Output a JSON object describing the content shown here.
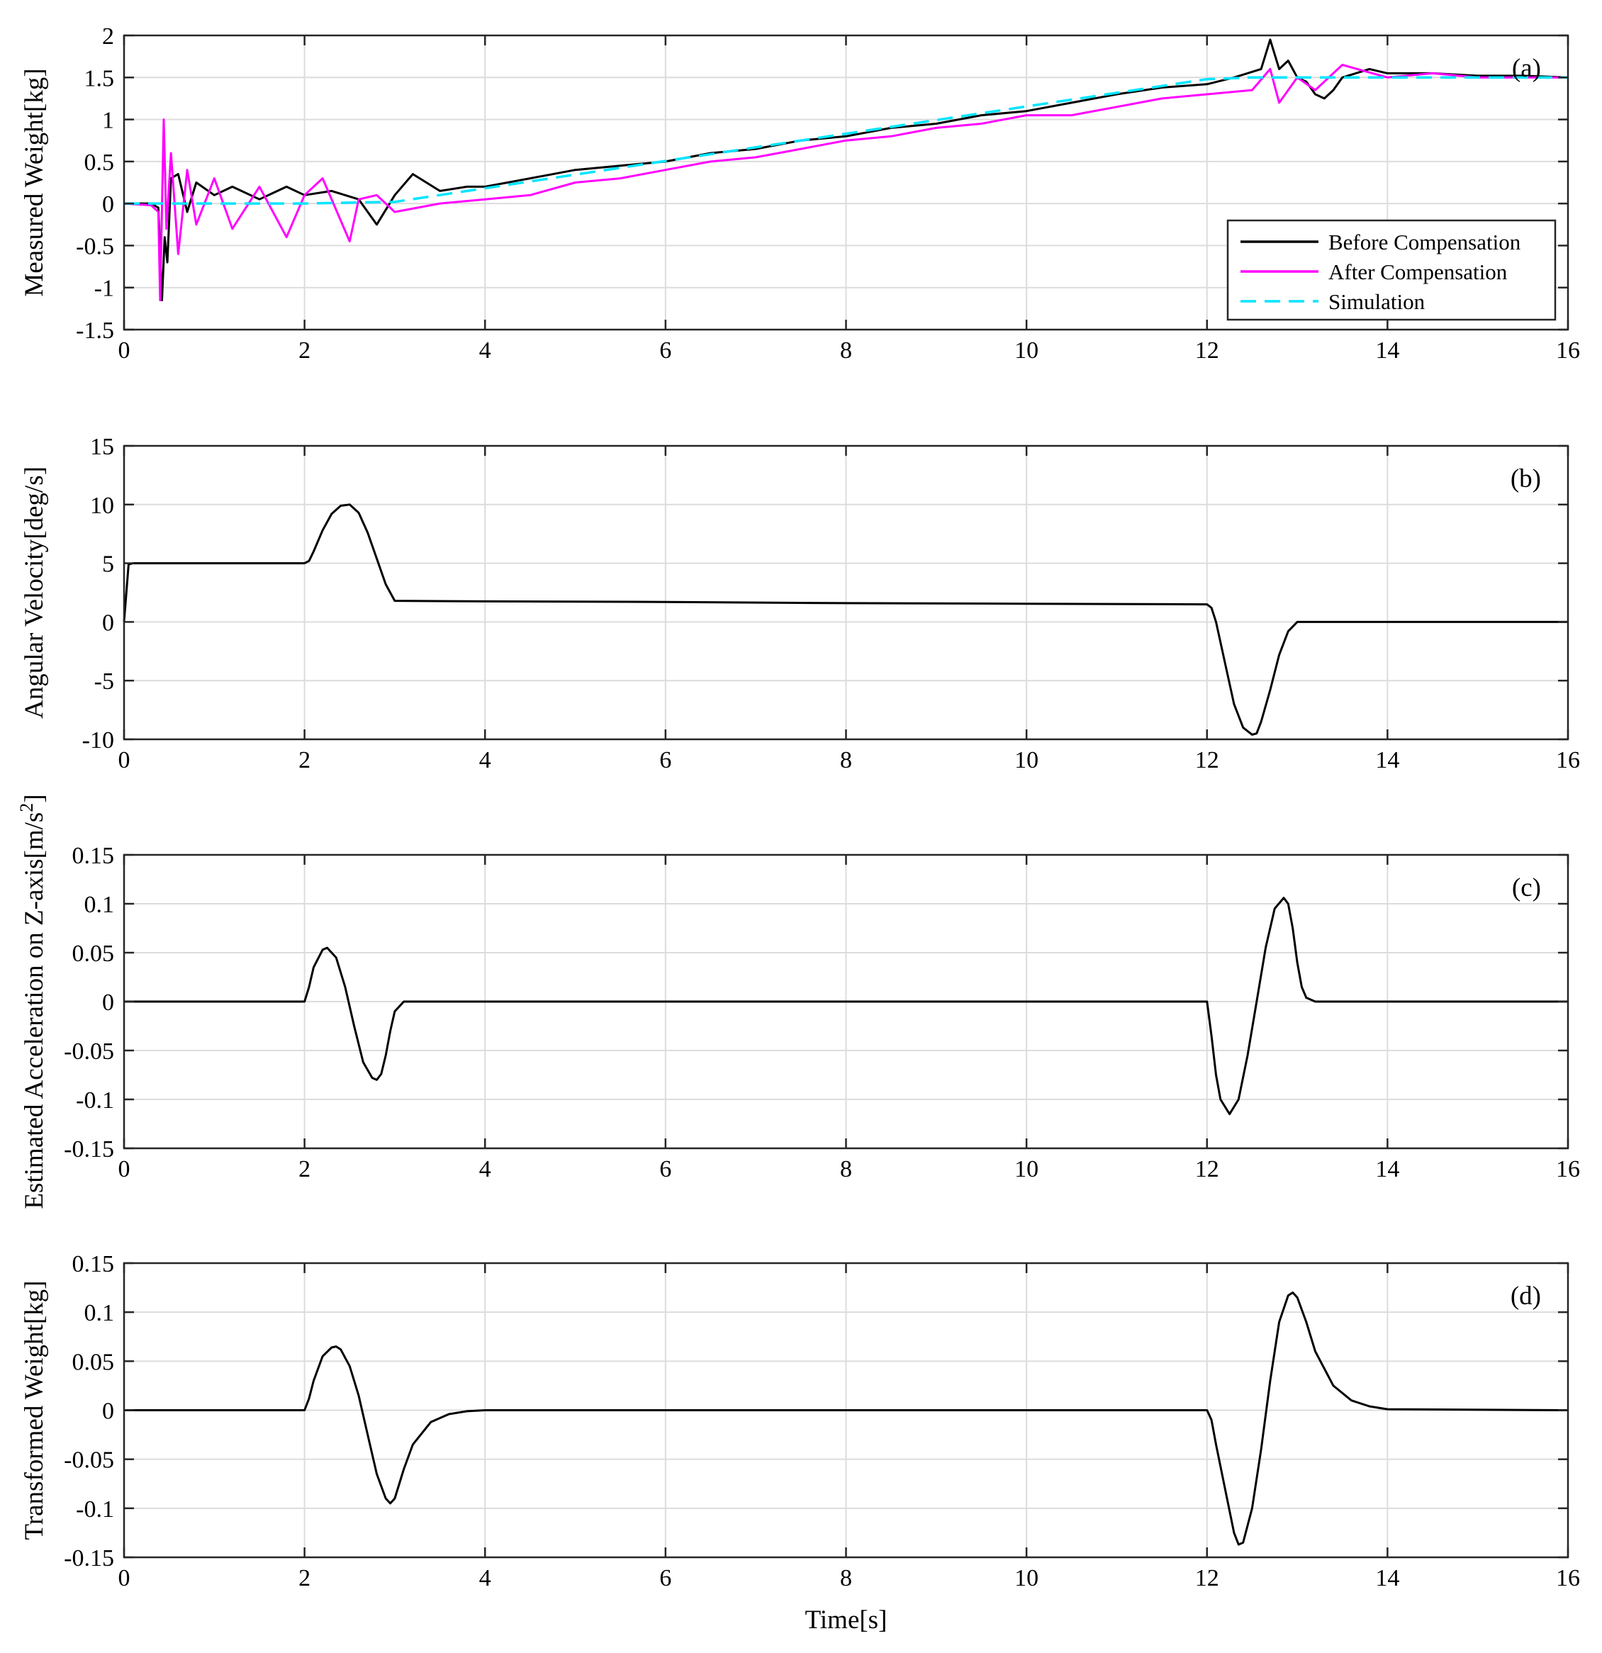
{
  "chart_data": [
    {
      "type": "line",
      "panel_label": "(a)",
      "ylabel": "Measured Weight[kg]",
      "xlabel": "",
      "xlim": [
        0,
        16
      ],
      "ylim": [
        -1.5,
        2
      ],
      "x_ticks": [
        0,
        2,
        4,
        6,
        8,
        10,
        12,
        14,
        16
      ],
      "y_ticks": [
        -1.5,
        -1,
        -0.5,
        0,
        0.5,
        1,
        1.5,
        2
      ],
      "grid": true,
      "legend_position": "bottom-right",
      "series": [
        {
          "name": "Before Compensation",
          "color": "#000000",
          "style": "solid",
          "x": [
            0,
            0.3,
            0.38,
            0.42,
            0.45,
            0.48,
            0.52,
            0.6,
            0.7,
            0.8,
            1.0,
            1.2,
            1.5,
            1.8,
            2.0,
            2.3,
            2.6,
            2.8,
            3.0,
            3.2,
            3.5,
            3.8,
            4.0,
            4.5,
            5.0,
            5.5,
            6.0,
            6.5,
            7.0,
            7.5,
            8.0,
            8.5,
            9.0,
            9.5,
            10.0,
            10.5,
            11.0,
            11.5,
            12.0,
            12.3,
            12.6,
            12.7,
            12.8,
            12.9,
            13.0,
            13.1,
            13.2,
            13.3,
            13.4,
            13.5,
            13.8,
            14.0,
            14.5,
            15.0,
            15.5,
            16.0
          ],
          "y": [
            0,
            0,
            -0.05,
            -1.15,
            -0.4,
            -0.7,
            0.3,
            0.35,
            -0.1,
            0.25,
            0.1,
            0.2,
            0.05,
            0.2,
            0.1,
            0.15,
            0.05,
            -0.25,
            0.1,
            0.35,
            0.15,
            0.2,
            0.2,
            0.3,
            0.4,
            0.45,
            0.5,
            0.6,
            0.65,
            0.75,
            0.8,
            0.9,
            0.95,
            1.05,
            1.1,
            1.2,
            1.3,
            1.38,
            1.42,
            1.5,
            1.6,
            1.95,
            1.6,
            1.7,
            1.5,
            1.45,
            1.3,
            1.25,
            1.35,
            1.5,
            1.6,
            1.55,
            1.55,
            1.52,
            1.52,
            1.5
          ]
        },
        {
          "name": "After Compensation",
          "color": "#ff00ff",
          "style": "solid",
          "x": [
            0,
            0.3,
            0.38,
            0.4,
            0.44,
            0.47,
            0.52,
            0.6,
            0.7,
            0.8,
            1.0,
            1.2,
            1.5,
            1.8,
            2.0,
            2.2,
            2.5,
            2.6,
            2.8,
            3.0,
            3.5,
            4.0,
            4.5,
            5.0,
            5.5,
            6.0,
            6.5,
            7.0,
            7.5,
            8.0,
            8.5,
            9.0,
            9.5,
            10.0,
            10.5,
            11.0,
            11.5,
            12.0,
            12.5,
            12.7,
            12.8,
            13.0,
            13.2,
            13.5,
            14.0,
            14.5,
            15.0,
            15.5,
            16.0
          ],
          "y": [
            0,
            -0.02,
            -0.1,
            -1.15,
            1.0,
            -0.3,
            0.6,
            -0.6,
            0.4,
            -0.25,
            0.3,
            -0.3,
            0.2,
            -0.4,
            0.1,
            0.3,
            -0.45,
            0.05,
            0.1,
            -0.1,
            0.0,
            0.05,
            0.1,
            0.25,
            0.3,
            0.4,
            0.5,
            0.55,
            0.65,
            0.75,
            0.8,
            0.9,
            0.95,
            1.05,
            1.05,
            1.15,
            1.25,
            1.3,
            1.35,
            1.6,
            1.2,
            1.5,
            1.35,
            1.65,
            1.5,
            1.55,
            1.5,
            1.5,
            1.5
          ]
        },
        {
          "name": "Simulation",
          "color": "#00e5ff",
          "style": "dashed",
          "x": [
            0,
            2,
            3,
            12,
            12.5,
            13,
            16
          ],
          "y": [
            0,
            0,
            0.02,
            1.48,
            1.5,
            1.5,
            1.5
          ]
        }
      ]
    },
    {
      "type": "line",
      "panel_label": "(b)",
      "ylabel": "Angular Velocity[deg/s]",
      "xlabel": "",
      "xlim": [
        0,
        16
      ],
      "ylim": [
        -10,
        15
      ],
      "x_ticks": [
        0,
        2,
        4,
        6,
        8,
        10,
        12,
        14,
        16
      ],
      "y_ticks": [
        -10,
        -5,
        0,
        5,
        10,
        15
      ],
      "grid": true,
      "series": [
        {
          "color": "#000000",
          "style": "solid",
          "x": [
            0,
            0.05,
            0.1,
            1.0,
            2.0,
            2.05,
            2.1,
            2.2,
            2.3,
            2.4,
            2.5,
            2.6,
            2.7,
            2.8,
            2.9,
            3.0,
            4.0,
            6.0,
            8.0,
            10.0,
            12.0,
            12.05,
            12.1,
            12.2,
            12.3,
            12.4,
            12.5,
            12.55,
            12.6,
            12.7,
            12.8,
            12.9,
            13.0,
            14.0,
            16.0
          ],
          "y": [
            0,
            4.9,
            5,
            5,
            5,
            5.2,
            6,
            7.8,
            9.2,
            9.9,
            10,
            9.3,
            7.6,
            5.4,
            3.2,
            1.8,
            1.75,
            1.7,
            1.6,
            1.55,
            1.5,
            1.2,
            0,
            -3.5,
            -7.0,
            -9.0,
            -9.6,
            -9.5,
            -8.5,
            -5.8,
            -2.8,
            -0.8,
            0,
            0,
            0
          ]
        }
      ]
    },
    {
      "type": "line",
      "panel_label": "(c)",
      "ylabel": "Estimated Acceleration on Z-axis[m/s²]",
      "xlabel": "",
      "xlim": [
        0,
        16
      ],
      "ylim": [
        -0.15,
        0.15
      ],
      "x_ticks": [
        0,
        2,
        4,
        6,
        8,
        10,
        12,
        14,
        16
      ],
      "y_ticks": [
        -0.15,
        -0.1,
        -0.05,
        0,
        0.05,
        0.1,
        0.15
      ],
      "grid": true,
      "series": [
        {
          "color": "#000000",
          "style": "solid",
          "x": [
            0,
            2.0,
            2.05,
            2.1,
            2.2,
            2.25,
            2.35,
            2.45,
            2.55,
            2.65,
            2.75,
            2.8,
            2.85,
            2.9,
            2.95,
            3.0,
            3.1,
            4.0,
            12.0,
            12.05,
            12.1,
            12.15,
            12.25,
            12.35,
            12.45,
            12.55,
            12.65,
            12.75,
            12.85,
            12.9,
            12.95,
            13.0,
            13.05,
            13.1,
            13.2,
            14.0,
            16.0
          ],
          "y": [
            0,
            0,
            0.015,
            0.035,
            0.053,
            0.055,
            0.045,
            0.015,
            -0.025,
            -0.062,
            -0.078,
            -0.08,
            -0.074,
            -0.055,
            -0.03,
            -0.01,
            0,
            0,
            0,
            -0.035,
            -0.075,
            -0.1,
            -0.115,
            -0.1,
            -0.055,
            0.0,
            0.055,
            0.095,
            0.106,
            0.1,
            0.075,
            0.04,
            0.015,
            0.004,
            0,
            0,
            0
          ]
        }
      ]
    },
    {
      "type": "line",
      "panel_label": "(d)",
      "ylabel": "Transformed Weight[kg]",
      "xlabel": "Time[s]",
      "xlim": [
        0,
        16
      ],
      "ylim": [
        -0.15,
        0.15
      ],
      "x_ticks": [
        0,
        2,
        4,
        6,
        8,
        10,
        12,
        14,
        16
      ],
      "y_ticks": [
        -0.15,
        -0.1,
        -0.05,
        0,
        0.05,
        0.1,
        0.15
      ],
      "grid": true,
      "series": [
        {
          "color": "#000000",
          "style": "solid",
          "x": [
            0,
            2.0,
            2.05,
            2.1,
            2.2,
            2.3,
            2.35,
            2.4,
            2.5,
            2.6,
            2.7,
            2.8,
            2.9,
            2.95,
            3.0,
            3.1,
            3.2,
            3.4,
            3.6,
            3.8,
            4.0,
            6.0,
            8.0,
            10.0,
            12.0,
            12.05,
            12.1,
            12.2,
            12.3,
            12.35,
            12.4,
            12.5,
            12.6,
            12.7,
            12.8,
            12.9,
            12.95,
            13.0,
            13.1,
            13.2,
            13.4,
            13.6,
            13.8,
            14.0,
            16.0
          ],
          "y": [
            0,
            0,
            0.012,
            0.03,
            0.055,
            0.064,
            0.065,
            0.062,
            0.045,
            0.015,
            -0.025,
            -0.065,
            -0.09,
            -0.095,
            -0.09,
            -0.06,
            -0.035,
            -0.012,
            -0.004,
            -0.001,
            0,
            0,
            0,
            0,
            0,
            -0.01,
            -0.035,
            -0.08,
            -0.125,
            -0.137,
            -0.135,
            -0.1,
            -0.04,
            0.03,
            0.09,
            0.117,
            0.12,
            0.115,
            0.09,
            0.06,
            0.025,
            0.01,
            0.004,
            0.001,
            0
          ]
        }
      ]
    }
  ]
}
